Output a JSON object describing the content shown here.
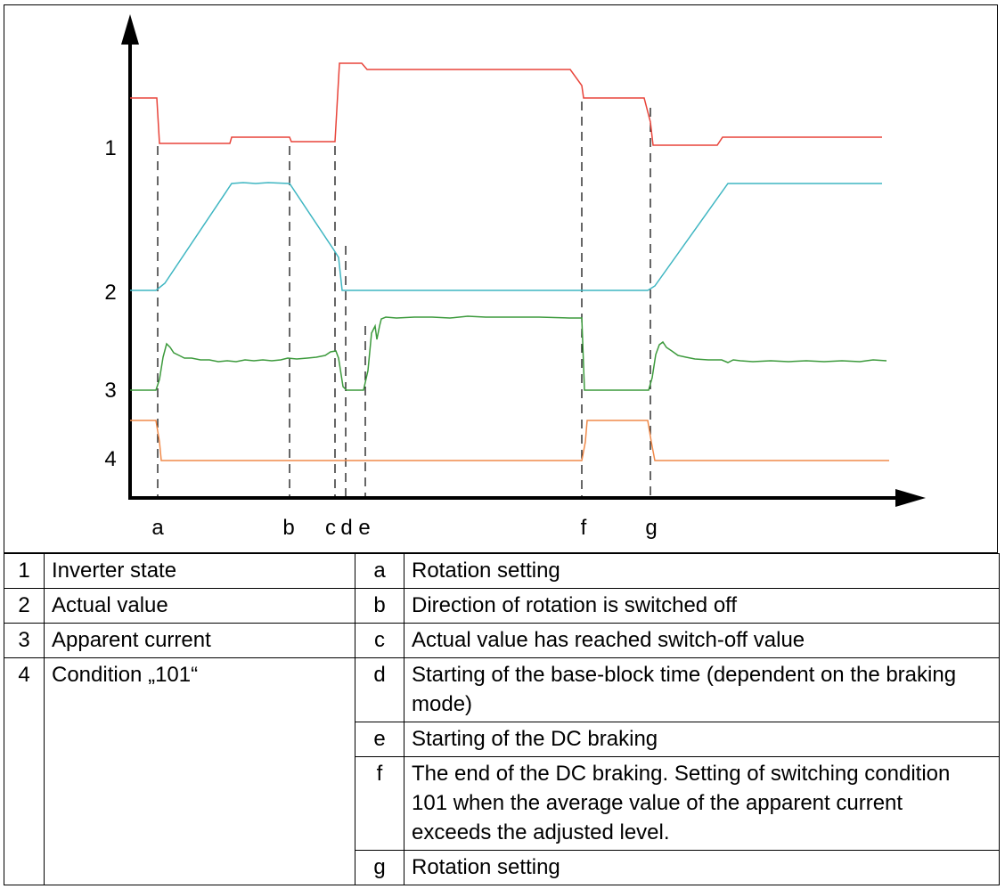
{
  "diagram": {
    "signals": [
      {
        "id": "1",
        "label": "1",
        "color": "#e8443a"
      },
      {
        "id": "2",
        "label": "2",
        "color": "#3fb6c2"
      },
      {
        "id": "3",
        "label": "3",
        "color": "#3c9a3c"
      },
      {
        "id": "4",
        "label": "4",
        "color": "#f08a4a"
      }
    ],
    "markers": [
      "a",
      "b",
      "c",
      "d",
      "e",
      "f",
      "g"
    ]
  },
  "legend": {
    "left": [
      {
        "key": "1",
        "text": "Inverter state"
      },
      {
        "key": "2",
        "text": "Actual value"
      },
      {
        "key": "3",
        "text": "Apparent current"
      },
      {
        "key": "4",
        "text": "Condition „101“"
      }
    ],
    "right": [
      {
        "key": "a",
        "text": "Rotation setting"
      },
      {
        "key": "b",
        "text": "Direction of rotation is switched off"
      },
      {
        "key": "c",
        "text": "Actual value has reached switch-off value"
      },
      {
        "key": "d",
        "text": "Starting of the base-block time (dependent on the braking mode)"
      },
      {
        "key": "e",
        "text": "Starting of the DC braking"
      },
      {
        "key": "f",
        "text": "The end of the DC braking. Setting of switching condition 101 when the average value of the apparent current exceeds the adjusted level."
      },
      {
        "key": "g",
        "text": "Rotation setting"
      }
    ]
  }
}
